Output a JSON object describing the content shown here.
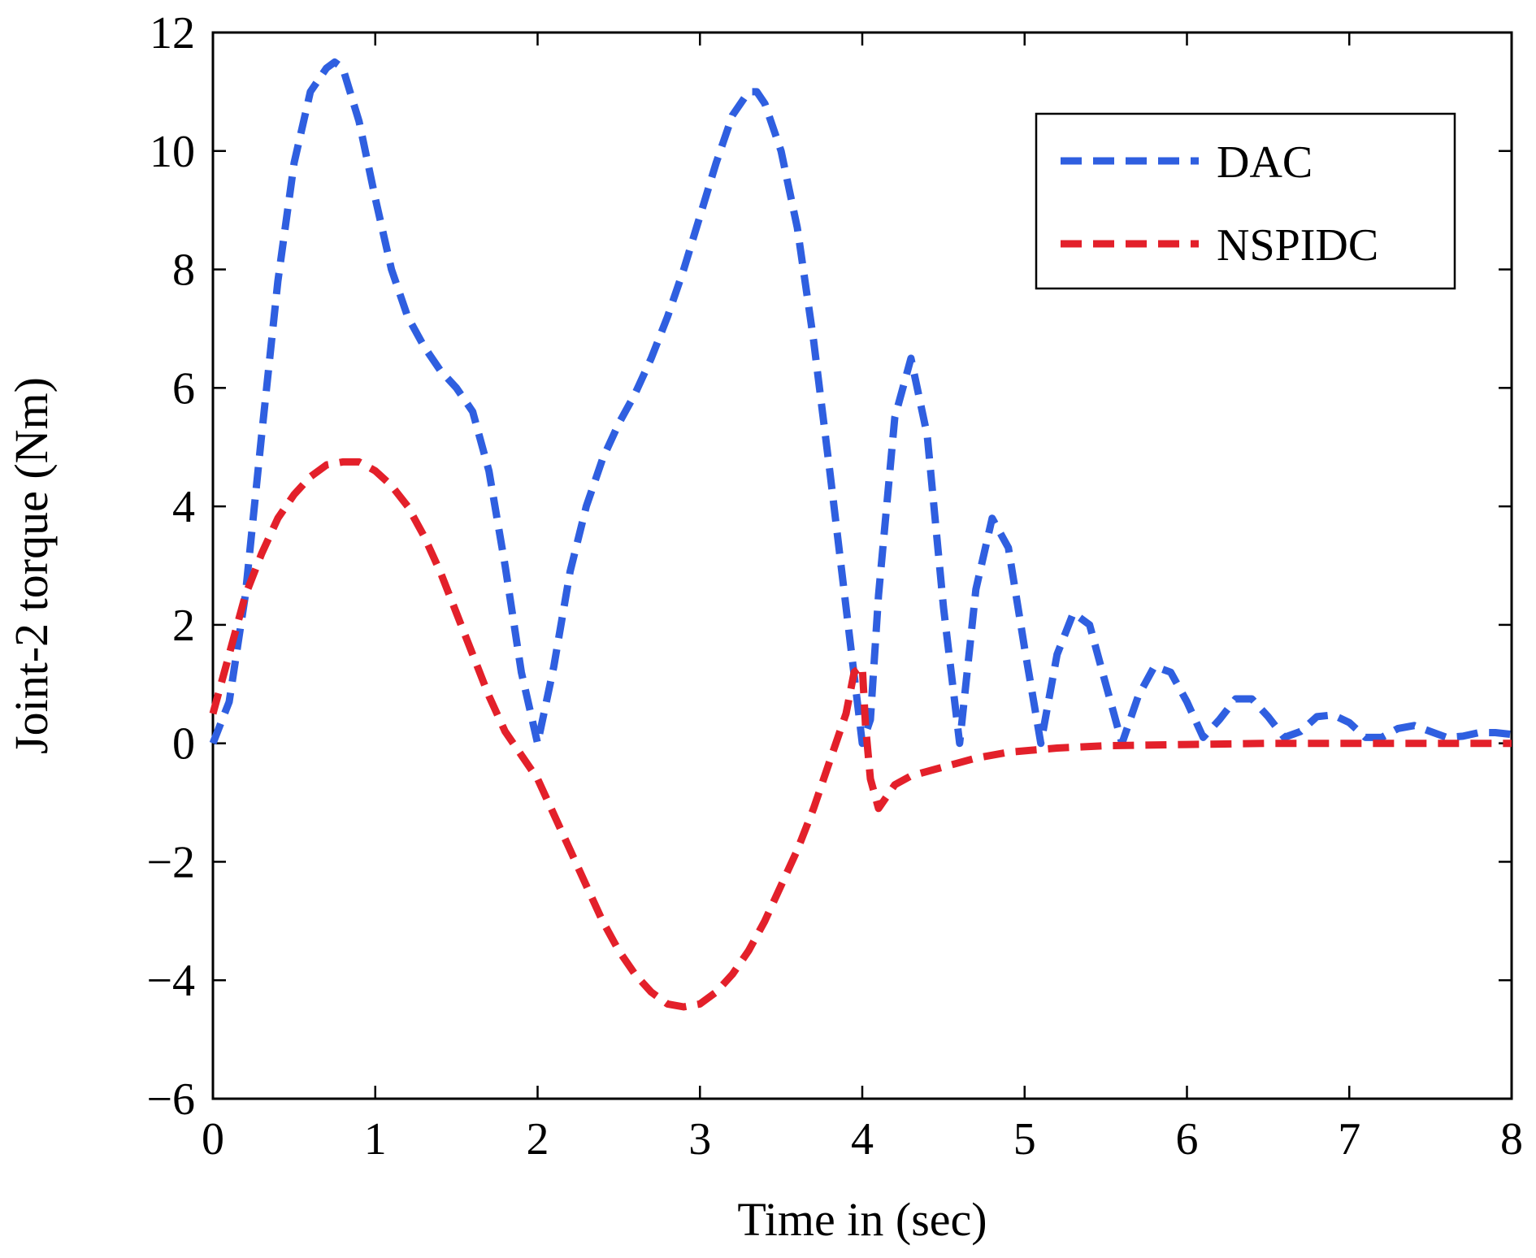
{
  "chart_data": {
    "type": "line",
    "title": "",
    "xlabel": "Time in (sec)",
    "ylabel": "Joint-2 torque (Nm)",
    "xlim": [
      0,
      8
    ],
    "ylim": [
      -6,
      12
    ],
    "xticks": [
      0,
      1,
      2,
      3,
      4,
      5,
      6,
      7,
      8
    ],
    "yticks": [
      -6,
      -4,
      -2,
      0,
      2,
      4,
      6,
      8,
      10,
      12
    ],
    "xtick_labels": [
      "0",
      "1",
      "2",
      "3",
      "4",
      "5",
      "6",
      "7",
      "8"
    ],
    "ytick_labels": [
      "−6",
      "−4",
      "−2",
      "0",
      "2",
      "4",
      "6",
      "8",
      "10",
      "12"
    ],
    "grid": false,
    "legend_position": "top-right",
    "series": [
      {
        "name": "DAC",
        "color": "#2f5fe0",
        "style": "dashed",
        "points": [
          [
            0,
            0
          ],
          [
            0.1,
            0.7
          ],
          [
            0.2,
            2.5
          ],
          [
            0.3,
            5.2
          ],
          [
            0.4,
            7.8
          ],
          [
            0.5,
            9.8
          ],
          [
            0.6,
            11.0
          ],
          [
            0.7,
            11.4
          ],
          [
            0.75,
            11.5
          ],
          [
            0.8,
            11.4
          ],
          [
            0.9,
            10.5
          ],
          [
            1.0,
            9.2
          ],
          [
            1.1,
            8.0
          ],
          [
            1.2,
            7.2
          ],
          [
            1.3,
            6.7
          ],
          [
            1.4,
            6.3
          ],
          [
            1.5,
            6.0
          ],
          [
            1.6,
            5.6
          ],
          [
            1.7,
            4.6
          ],
          [
            1.8,
            3.0
          ],
          [
            1.9,
            1.2
          ],
          [
            2.0,
            0
          ],
          [
            2.1,
            1.3
          ],
          [
            2.2,
            2.9
          ],
          [
            2.3,
            4.0
          ],
          [
            2.4,
            4.8
          ],
          [
            2.5,
            5.4
          ],
          [
            2.6,
            5.9
          ],
          [
            2.7,
            6.5
          ],
          [
            2.8,
            7.2
          ],
          [
            2.9,
            8.0
          ],
          [
            3.0,
            8.9
          ],
          [
            3.1,
            9.8
          ],
          [
            3.2,
            10.6
          ],
          [
            3.3,
            11.0
          ],
          [
            3.35,
            11.0
          ],
          [
            3.4,
            10.8
          ],
          [
            3.5,
            10.0
          ],
          [
            3.6,
            8.7
          ],
          [
            3.7,
            6.8
          ],
          [
            3.8,
            4.6
          ],
          [
            3.9,
            2.3
          ],
          [
            4.0,
            0
          ],
          [
            4.05,
            0.4
          ],
          [
            4.1,
            2.5
          ],
          [
            4.2,
            5.5
          ],
          [
            4.3,
            6.5
          ],
          [
            4.4,
            5.2
          ],
          [
            4.5,
            2.3
          ],
          [
            4.6,
            0
          ],
          [
            4.7,
            2.6
          ],
          [
            4.8,
            3.8
          ],
          [
            4.9,
            3.3
          ],
          [
            5.0,
            1.6
          ],
          [
            5.1,
            0
          ],
          [
            5.2,
            1.5
          ],
          [
            5.3,
            2.2
          ],
          [
            5.4,
            2.0
          ],
          [
            5.5,
            1.0
          ],
          [
            5.6,
            0
          ],
          [
            5.7,
            0.8
          ],
          [
            5.8,
            1.3
          ],
          [
            5.9,
            1.2
          ],
          [
            6.0,
            0.7
          ],
          [
            6.1,
            0.1
          ],
          [
            6.2,
            0.4
          ],
          [
            6.3,
            0.75
          ],
          [
            6.4,
            0.75
          ],
          [
            6.5,
            0.45
          ],
          [
            6.6,
            0.1
          ],
          [
            6.7,
            0.2
          ],
          [
            6.8,
            0.45
          ],
          [
            6.9,
            0.48
          ],
          [
            7.0,
            0.35
          ],
          [
            7.1,
            0.1
          ],
          [
            7.2,
            0.1
          ],
          [
            7.3,
            0.25
          ],
          [
            7.4,
            0.3
          ],
          [
            7.5,
            0.2
          ],
          [
            7.6,
            0.1
          ],
          [
            7.7,
            0.12
          ],
          [
            7.8,
            0.18
          ],
          [
            7.9,
            0.18
          ],
          [
            8.0,
            0.15
          ]
        ]
      },
      {
        "name": "NSPIDC",
        "color": "#e3202a",
        "style": "dashed",
        "points": [
          [
            0,
            0.5
          ],
          [
            0.1,
            1.5
          ],
          [
            0.2,
            2.5
          ],
          [
            0.3,
            3.2
          ],
          [
            0.4,
            3.8
          ],
          [
            0.5,
            4.2
          ],
          [
            0.6,
            4.5
          ],
          [
            0.7,
            4.7
          ],
          [
            0.8,
            4.75
          ],
          [
            0.9,
            4.75
          ],
          [
            1.0,
            4.6
          ],
          [
            1.1,
            4.35
          ],
          [
            1.2,
            4.0
          ],
          [
            1.3,
            3.5
          ],
          [
            1.4,
            2.9
          ],
          [
            1.5,
            2.2
          ],
          [
            1.6,
            1.5
          ],
          [
            1.7,
            0.8
          ],
          [
            1.8,
            0.2
          ],
          [
            1.9,
            -0.2
          ],
          [
            2.0,
            -0.6
          ],
          [
            2.1,
            -1.2
          ],
          [
            2.2,
            -1.8
          ],
          [
            2.3,
            -2.4
          ],
          [
            2.4,
            -3.0
          ],
          [
            2.5,
            -3.5
          ],
          [
            2.6,
            -3.9
          ],
          [
            2.7,
            -4.2
          ],
          [
            2.8,
            -4.4
          ],
          [
            2.9,
            -4.45
          ],
          [
            3.0,
            -4.4
          ],
          [
            3.1,
            -4.2
          ],
          [
            3.2,
            -3.9
          ],
          [
            3.3,
            -3.5
          ],
          [
            3.4,
            -3.0
          ],
          [
            3.5,
            -2.4
          ],
          [
            3.6,
            -1.8
          ],
          [
            3.7,
            -1.1
          ],
          [
            3.8,
            -0.3
          ],
          [
            3.9,
            0.5
          ],
          [
            3.95,
            1.2
          ],
          [
            4.0,
            1.3
          ],
          [
            4.02,
            0.3
          ],
          [
            4.05,
            -0.6
          ],
          [
            4.1,
            -1.1
          ],
          [
            4.15,
            -0.9
          ],
          [
            4.2,
            -0.7
          ],
          [
            4.3,
            -0.55
          ],
          [
            4.5,
            -0.4
          ],
          [
            4.7,
            -0.25
          ],
          [
            4.9,
            -0.15
          ],
          [
            5.2,
            -0.08
          ],
          [
            5.5,
            -0.04
          ],
          [
            6.0,
            -0.02
          ],
          [
            6.5,
            0
          ],
          [
            7.0,
            0
          ],
          [
            7.5,
            0
          ],
          [
            8.0,
            0
          ]
        ]
      }
    ]
  }
}
